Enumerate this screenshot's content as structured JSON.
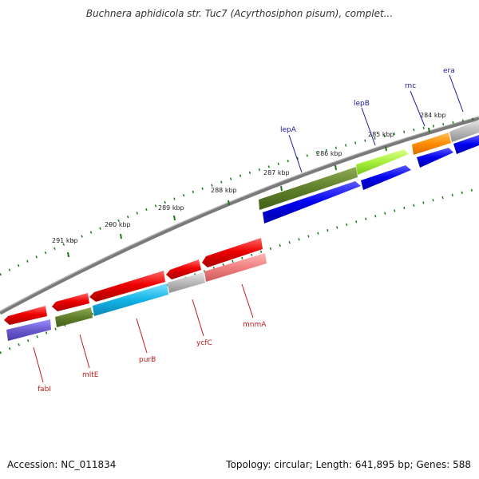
{
  "title": "Buchnera aphidicola str. Tuc7 (Acyrthosiphon pisum), complet...",
  "footer": {
    "accession": "Accession: NC_011834",
    "summary": "Topology: circular; Length: 641,895 bp; Genes: 588"
  },
  "colors": {
    "backbone": "#7a7a7a",
    "tick": "#1a7a1a",
    "forward_label": "#1a1aa0",
    "reverse_label": "#c41a1a"
  },
  "kbp_labels": [
    "284 kbp",
    "285 kbp",
    "286 kbp",
    "287 kbp",
    "288 kbp",
    "289 kbp",
    "290 kbp",
    "291 kbp"
  ],
  "forward_labels": [
    "era",
    "rnc",
    "lepB",
    "lepA"
  ],
  "reverse_labels": [
    "mnmA",
    "ycfC",
    "purB",
    "mltE",
    "fabI"
  ]
}
